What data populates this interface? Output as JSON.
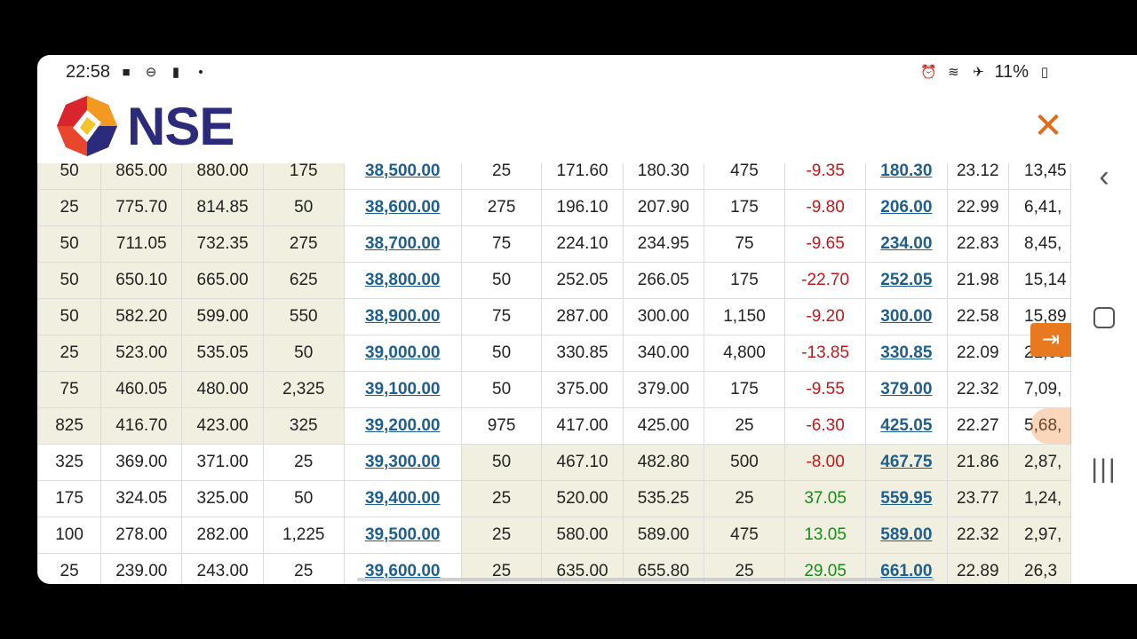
{
  "status_bar": {
    "time": "22:58",
    "battery": "11%",
    "left_icons": [
      "video-icon",
      "dnd-icon",
      "alert-icon",
      "dot-icon"
    ],
    "right_icons": [
      "alarm-icon",
      "wifi-icon",
      "airplane-icon",
      "battery-icon"
    ]
  },
  "header": {
    "brand": "NSE",
    "close_label": "✕"
  },
  "colors": {
    "brand_navy": "#2c2a7a",
    "accent_orange": "#e36a1c",
    "itm_shade": "#f1efdf",
    "link_blue": "#1f5f8e",
    "negative_red": "#c0181b",
    "positive_green": "#178a17"
  },
  "option_chain": {
    "rows": [
      {
        "c_qty": "50",
        "c_bid": "865.00",
        "c_ask": "880.00",
        "c_askqty": "175",
        "strike": "38,500.00",
        "p_bidqty": "25",
        "p_bid": "171.60",
        "p_ask": "180.30",
        "p_askqty": "475",
        "p_chng": "-9.35",
        "p_ltp": "180.30",
        "p_iv": "23.12",
        "p_vol": "13,45",
        "c_itm": true,
        "p_itm": false
      },
      {
        "c_qty": "25",
        "c_bid": "775.70",
        "c_ask": "814.85",
        "c_askqty": "50",
        "strike": "38,600.00",
        "p_bidqty": "275",
        "p_bid": "196.10",
        "p_ask": "207.90",
        "p_askqty": "175",
        "p_chng": "-9.80",
        "p_ltp": "206.00",
        "p_iv": "22.99",
        "p_vol": "6,41,",
        "c_itm": true,
        "p_itm": false
      },
      {
        "c_qty": "50",
        "c_bid": "711.05",
        "c_ask": "732.35",
        "c_askqty": "275",
        "strike": "38,700.00",
        "p_bidqty": "75",
        "p_bid": "224.10",
        "p_ask": "234.95",
        "p_askqty": "75",
        "p_chng": "-9.65",
        "p_ltp": "234.00",
        "p_iv": "22.83",
        "p_vol": "8,45,",
        "c_itm": true,
        "p_itm": false
      },
      {
        "c_qty": "50",
        "c_bid": "650.10",
        "c_ask": "665.00",
        "c_askqty": "625",
        "strike": "38,800.00",
        "p_bidqty": "50",
        "p_bid": "252.05",
        "p_ask": "266.05",
        "p_askqty": "175",
        "p_chng": "-22.70",
        "p_ltp": "252.05",
        "p_iv": "21.98",
        "p_vol": "15,14",
        "c_itm": true,
        "p_itm": false
      },
      {
        "c_qty": "50",
        "c_bid": "582.20",
        "c_ask": "599.00",
        "c_askqty": "550",
        "strike": "38,900.00",
        "p_bidqty": "75",
        "p_bid": "287.00",
        "p_ask": "300.00",
        "p_askqty": "1,150",
        "p_chng": "-9.20",
        "p_ltp": "300.00",
        "p_iv": "22.58",
        "p_vol": "15,89",
        "c_itm": true,
        "p_itm": false
      },
      {
        "c_qty": "25",
        "c_bid": "523.00",
        "c_ask": "535.05",
        "c_askqty": "50",
        "strike": "39,000.00",
        "p_bidqty": "50",
        "p_bid": "330.85",
        "p_ask": "340.00",
        "p_askqty": "4,800",
        "p_chng": "-13.85",
        "p_ltp": "330.85",
        "p_iv": "22.09",
        "p_vol": "21,00",
        "c_itm": true,
        "p_itm": false
      },
      {
        "c_qty": "75",
        "c_bid": "460.05",
        "c_ask": "480.00",
        "c_askqty": "2,325",
        "strike": "39,100.00",
        "p_bidqty": "50",
        "p_bid": "375.00",
        "p_ask": "379.00",
        "p_askqty": "175",
        "p_chng": "-9.55",
        "p_ltp": "379.00",
        "p_iv": "22.32",
        "p_vol": "7,09,",
        "c_itm": true,
        "p_itm": false
      },
      {
        "c_qty": "825",
        "c_bid": "416.70",
        "c_ask": "423.00",
        "c_askqty": "325",
        "strike": "39,200.00",
        "p_bidqty": "975",
        "p_bid": "417.00",
        "p_ask": "425.00",
        "p_askqty": "25",
        "p_chng": "-6.30",
        "p_ltp": "425.05",
        "p_iv": "22.27",
        "p_vol": "5,68,",
        "c_itm": true,
        "p_itm": false
      },
      {
        "c_qty": "325",
        "c_bid": "369.00",
        "c_ask": "371.00",
        "c_askqty": "25",
        "strike": "39,300.00",
        "p_bidqty": "50",
        "p_bid": "467.10",
        "p_ask": "482.80",
        "p_askqty": "500",
        "p_chng": "-8.00",
        "p_ltp": "467.75",
        "p_iv": "21.86",
        "p_vol": "2,87,",
        "c_itm": false,
        "p_itm": true
      },
      {
        "c_qty": "175",
        "c_bid": "324.05",
        "c_ask": "325.00",
        "c_askqty": "50",
        "strike": "39,400.00",
        "p_bidqty": "25",
        "p_bid": "520.00",
        "p_ask": "535.25",
        "p_askqty": "25",
        "p_chng": "37.05",
        "p_ltp": "559.95",
        "p_iv": "23.77",
        "p_vol": "1,24,",
        "c_itm": false,
        "p_itm": true
      },
      {
        "c_qty": "100",
        "c_bid": "278.00",
        "c_ask": "282.00",
        "c_askqty": "1,225",
        "strike": "39,500.00",
        "p_bidqty": "25",
        "p_bid": "580.00",
        "p_ask": "589.00",
        "p_askqty": "475",
        "p_chng": "13.05",
        "p_ltp": "589.00",
        "p_iv": "22.32",
        "p_vol": "2,97,",
        "c_itm": false,
        "p_itm": true
      },
      {
        "c_qty": "25",
        "c_bid": "239.00",
        "c_ask": "243.00",
        "c_askqty": "25",
        "strike": "39,600.00",
        "p_bidqty": "25",
        "p_bid": "635.00",
        "p_ask": "655.80",
        "p_askqty": "25",
        "p_chng": "29.05",
        "p_ltp": "661.00",
        "p_iv": "22.89",
        "p_vol": "26,3",
        "c_itm": false,
        "p_itm": true
      }
    ]
  },
  "nav": {
    "back_label": "‹",
    "recent_label": "|||"
  }
}
